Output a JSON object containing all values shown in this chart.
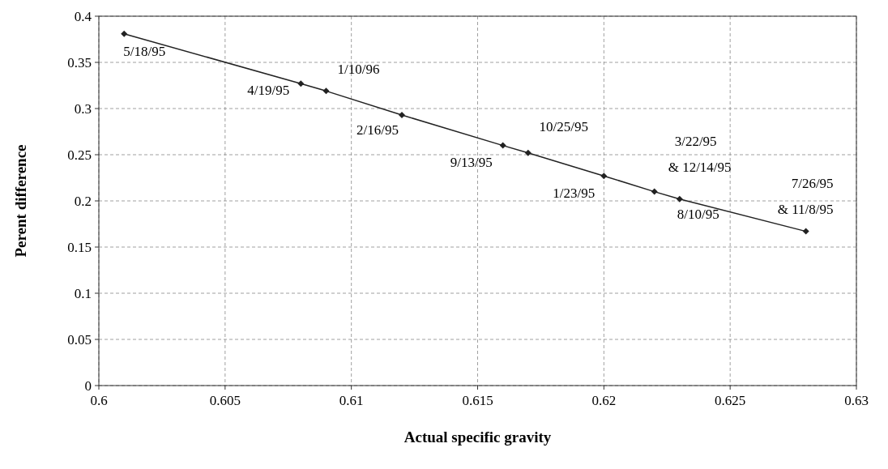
{
  "chart_data": {
    "type": "line",
    "xlabel": "Actual specific gravity",
    "ylabel": "Perent difference",
    "xlim": [
      0.6,
      0.63
    ],
    "xticks": [
      0.6,
      0.605,
      0.61,
      0.615,
      0.62,
      0.625,
      0.63
    ],
    "ylim": [
      0,
      0.4
    ],
    "yticks": [
      0,
      0.05,
      0.1,
      0.15,
      0.2,
      0.25,
      0.3,
      0.35,
      0.4
    ],
    "grid": true,
    "marker": "diamond",
    "line_style": "solid",
    "series": [
      {
        "color": "#222222",
        "x": [
          0.601,
          0.608,
          0.609,
          0.612,
          0.616,
          0.617,
          0.62,
          0.622,
          0.623,
          0.628
        ],
        "values": [
          0.381,
          0.327,
          0.319,
          0.293,
          0.26,
          0.252,
          0.227,
          0.21,
          0.202,
          0.167
        ]
      }
    ],
    "annotations": [
      {
        "text": "5/18/95",
        "x": 0.601,
        "y": 0.381
      },
      {
        "text": "4/19/95",
        "x": 0.608,
        "y": 0.327
      },
      {
        "text": "1/10/96",
        "x": 0.609,
        "y": 0.319
      },
      {
        "text": "2/16/95",
        "x": 0.612,
        "y": 0.293
      },
      {
        "text": "9/13/95",
        "x": 0.616,
        "y": 0.26
      },
      {
        "text": "10/25/95",
        "x": 0.617,
        "y": 0.252
      },
      {
        "text": "1/23/95",
        "x": 0.62,
        "y": 0.227
      },
      {
        "text": "3/22/95\n& 12/14/95",
        "x": 0.622,
        "y": 0.21
      },
      {
        "text": "8/10/95",
        "x": 0.623,
        "y": 0.202
      },
      {
        "text": "7/26/95\n& 11/8/95",
        "x": 0.628,
        "y": 0.167
      }
    ]
  }
}
